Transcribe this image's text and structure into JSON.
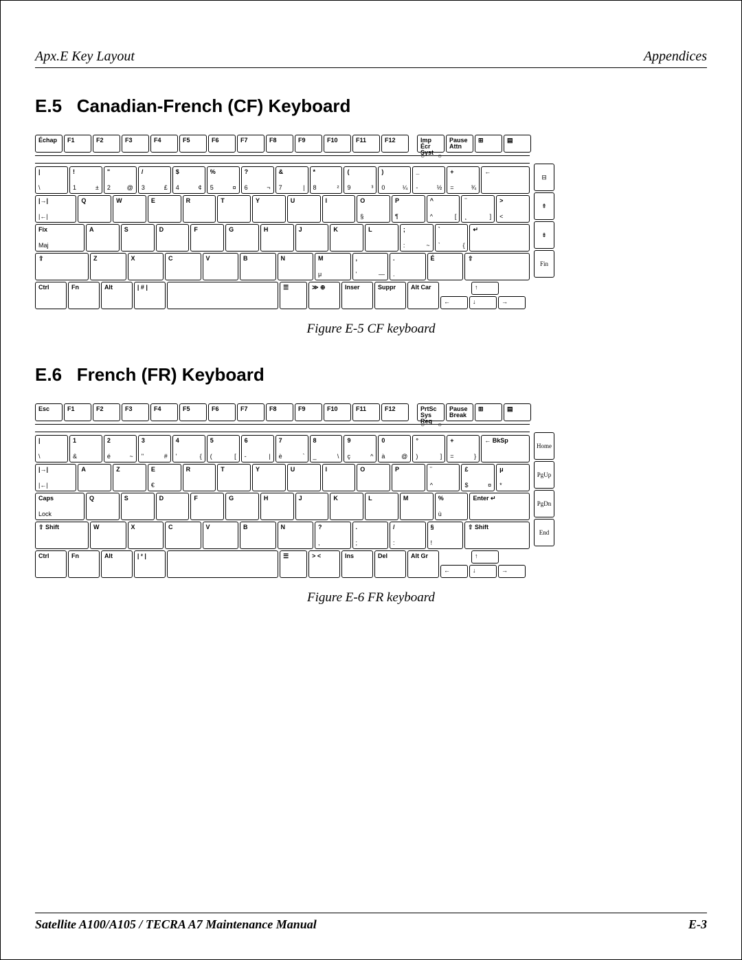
{
  "header": {
    "left": "Apx.E   Key Layout",
    "right": "Appendices"
  },
  "footer": {
    "left": "Satellite A100/A105 / TECRA A7  Maintenance Manual",
    "right": "E-3"
  },
  "sections": {
    "s1": {
      "num": "E.5",
      "title": "Canadian-French (CF) Keyboard",
      "caption": "Figure E-5 CF keyboard"
    },
    "s2": {
      "num": "E.6",
      "title": "French (FR) Keyboard",
      "caption": "Figure E-6 FR keyboard"
    }
  },
  "kbd_cf": {
    "fn_row": [
      "Échap",
      "F1",
      "F2",
      "F3",
      "F4",
      "F5",
      "F6",
      "F7",
      "F8",
      "F9",
      "F10",
      "F11",
      "F12",
      "",
      "Imp Écr\nSyst",
      "Pause\nAttn",
      "⊞",
      "▤"
    ],
    "num_row": [
      {
        "t": "!",
        "b": "1",
        "r": "±"
      },
      {
        "t": "\"",
        "b": "2",
        "r": "@"
      },
      {
        "t": "/",
        "b": "3",
        "r": "£"
      },
      {
        "t": "$",
        "b": "4",
        "r": "¢"
      },
      {
        "t": "%",
        "b": "5",
        "r": "¤"
      },
      {
        "t": "?",
        "b": "6",
        "r": "¬"
      },
      {
        "t": "&",
        "b": "7",
        "r": "|"
      },
      {
        "t": "*",
        "b": "8",
        "r": "²"
      },
      {
        "t": "(",
        "b": "9",
        "r": "³"
      },
      {
        "t": ")",
        "b": "0",
        "r": "¼"
      },
      {
        "t": "_",
        "b": "-",
        "r": "½"
      },
      {
        "t": "+",
        "b": "=",
        "r": "¾"
      }
    ],
    "num_extra": {
      "label": "←"
    },
    "qwerty_row": [
      {
        "t": "|→|",
        "b": "|←|"
      },
      {
        "t": "Q"
      },
      {
        "t": "W"
      },
      {
        "t": "E"
      },
      {
        "t": "R"
      },
      {
        "t": "T"
      },
      {
        "t": "Y"
      },
      {
        "t": "U"
      },
      {
        "t": "I"
      },
      {
        "t": "O",
        "b": "§"
      },
      {
        "t": "P",
        "b": "¶"
      },
      {
        "t": "^",
        "b": "^",
        "r": "["
      },
      {
        "t": "¨",
        "b": "¸",
        "r": "]"
      },
      {
        "t": ">",
        "b": "<"
      }
    ],
    "home_row": [
      {
        "t": "Fix",
        "b": "Maj"
      },
      {
        "t": "A"
      },
      {
        "t": "S"
      },
      {
        "t": "D"
      },
      {
        "t": "F"
      },
      {
        "t": "G"
      },
      {
        "t": "H"
      },
      {
        "t": "J"
      },
      {
        "t": "K"
      },
      {
        "t": "L"
      },
      {
        "t": ";",
        "b": ":",
        "r": "~"
      },
      {
        "t": "`",
        "b": "`",
        "r": "{"
      },
      {
        "t": "↵"
      }
    ],
    "shift_row": [
      {
        "t": "⇧"
      },
      {
        "t": "Z"
      },
      {
        "t": "X"
      },
      {
        "t": "C"
      },
      {
        "t": "V"
      },
      {
        "t": "B"
      },
      {
        "t": "N"
      },
      {
        "t": "M",
        "b": "μ"
      },
      {
        "t": ",",
        "b": "'",
        "r": "—"
      },
      {
        "t": ".",
        "b": ".",
        "r": ""
      },
      {
        "t": "É",
        "b": "",
        "r": ""
      },
      {
        "t": "⇧"
      }
    ],
    "bottom_row": [
      "Ctrl",
      "Fn",
      "Alt",
      "|  #  |",
      "",
      "☰",
      "≫ ⊕",
      "Inser",
      "Suppr",
      "Alt Car"
    ],
    "arrows": [
      "↑",
      "←",
      "↓",
      "→"
    ],
    "side": [
      "⊟",
      "⇞",
      "⇟",
      "Fin"
    ]
  },
  "kbd_fr": {
    "fn_row": [
      "Esc",
      "F1",
      "F2",
      "F3",
      "F4",
      "F5",
      "F6",
      "F7",
      "F8",
      "F9",
      "F10",
      "F11",
      "F12",
      "",
      "PrtSc\nSys Req",
      "Pause\nBreak",
      "⊞",
      "▤"
    ],
    "num_row": [
      {
        "t": "1",
        "b": "&"
      },
      {
        "t": "2",
        "b": "é",
        "r": "~"
      },
      {
        "t": "3",
        "b": "\"",
        "r": "#"
      },
      {
        "t": "4",
        "b": "'",
        "r": "{"
      },
      {
        "t": "5",
        "b": "(",
        "r": "["
      },
      {
        "t": "6",
        "b": "-",
        "r": "|"
      },
      {
        "t": "7",
        "b": "è",
        "r": "`"
      },
      {
        "t": "8",
        "b": "_",
        "r": "\\"
      },
      {
        "t": "9",
        "b": "ç",
        "r": "^"
      },
      {
        "t": "0",
        "b": "à",
        "r": "@"
      },
      {
        "t": "°",
        "b": ")",
        "r": "]"
      },
      {
        "t": "+",
        "b": "=",
        "r": "}"
      }
    ],
    "num_extra": {
      "label": "← BkSp"
    },
    "qwerty_row": [
      {
        "t": "|→|",
        "b": "|←|"
      },
      {
        "t": "A"
      },
      {
        "t": "Z"
      },
      {
        "t": "E",
        "b": "€"
      },
      {
        "t": "R"
      },
      {
        "t": "T"
      },
      {
        "t": "Y"
      },
      {
        "t": "U"
      },
      {
        "t": "I"
      },
      {
        "t": "O"
      },
      {
        "t": "P"
      },
      {
        "t": "¨",
        "b": "^"
      },
      {
        "t": "£",
        "b": "$",
        "r": "¤"
      },
      {
        "t": "μ",
        "b": "*"
      }
    ],
    "home_row": [
      {
        "t": "Caps",
        "b": "Lock"
      },
      {
        "t": "Q"
      },
      {
        "t": "S"
      },
      {
        "t": "D"
      },
      {
        "t": "F"
      },
      {
        "t": "G"
      },
      {
        "t": "H"
      },
      {
        "t": "J"
      },
      {
        "t": "K"
      },
      {
        "t": "L"
      },
      {
        "t": "M"
      },
      {
        "t": "%",
        "b": "ù"
      },
      {
        "t": "Enter ↵"
      }
    ],
    "shift_row": [
      {
        "t": "⇧ Shift"
      },
      {
        "t": "W"
      },
      {
        "t": "X"
      },
      {
        "t": "C"
      },
      {
        "t": "V"
      },
      {
        "t": "B"
      },
      {
        "t": "N"
      },
      {
        "t": "?",
        "b": ",",
        "r": ""
      },
      {
        "t": ".",
        "b": ";",
        "r": ""
      },
      {
        "t": "/",
        "b": ":",
        "r": ""
      },
      {
        "t": "§",
        "b": "!",
        "r": ""
      },
      {
        "t": "⇧ Shift"
      }
    ],
    "bottom_row": [
      "Ctrl",
      "Fn",
      "Alt",
      "|  ²  |",
      "",
      "☰",
      "> <",
      "Ins",
      "Del",
      "Alt Gr"
    ],
    "arrows": [
      "↑",
      "←",
      "↓",
      "→"
    ],
    "side": [
      "Home",
      "PgUp",
      "PgDn",
      "End"
    ]
  },
  "colors": {
    "line": "#000000",
    "bg": "#ffffff"
  },
  "typography": {
    "body_font": "Times New Roman",
    "title_font": "Arial",
    "title_size_pt": 20,
    "caption_size_pt": 14
  }
}
